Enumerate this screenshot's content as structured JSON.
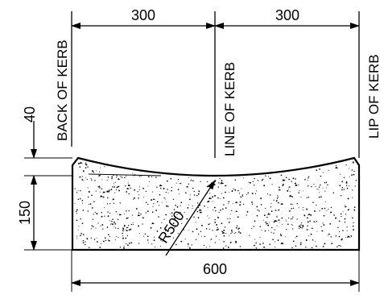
{
  "dimensions": {
    "top_left": "300",
    "top_right": "300",
    "overall_width": "600",
    "top_depth": "40",
    "base_depth": "150",
    "radius": "R500"
  },
  "labels": {
    "back": "BACK OF KERB",
    "line": "LINE OF KERB",
    "lip": "LIP OF KERB"
  }
}
